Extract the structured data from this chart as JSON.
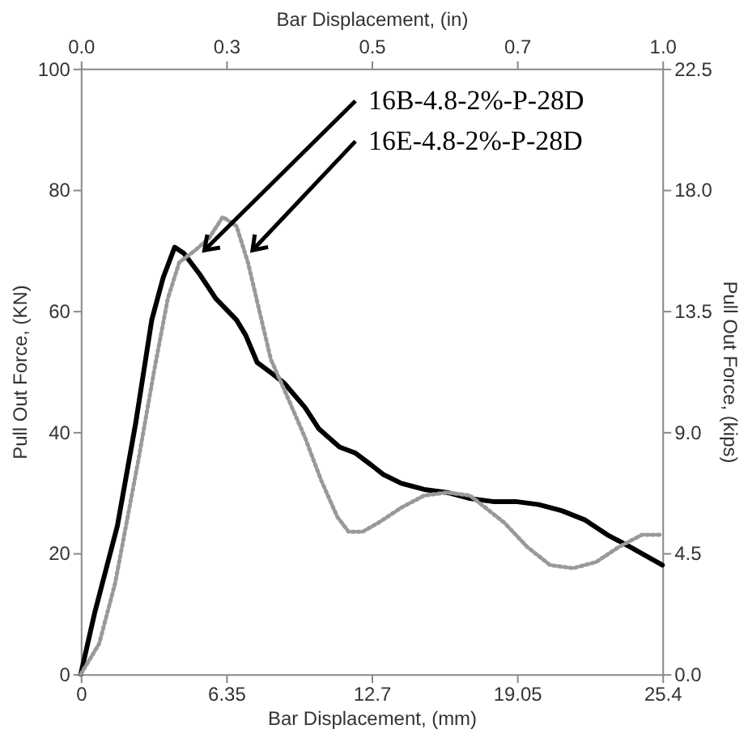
{
  "chart_data": {
    "type": "line",
    "xlabel": "Bar Displacement, (mm)",
    "ylabel": "Pull Out Force, (KN)",
    "y2label": "Pull Out Force, (kips)",
    "x2label": "Bar Displacement, (in)",
    "xlim": [
      0,
      25.4
    ],
    "xticks": [
      0,
      6.35,
      12.7,
      19.05,
      25.4
    ],
    "ylim": [
      0,
      100
    ],
    "yticks": [
      0,
      20,
      40,
      60,
      80,
      100
    ],
    "y2lim": [
      0,
      22.5
    ],
    "y2ticks": [
      {
        "value": 0,
        "label": "0.0"
      },
      4.5,
      {
        "value": 9,
        "label": "9.0"
      },
      13.5,
      {
        "value": 18,
        "label": "18.0"
      },
      22.5
    ],
    "x2lim": [
      0,
      1
    ],
    "x2ticks": [
      {
        "value": 0,
        "label": "0.0"
      },
      {
        "value": 0.25,
        "label": "0.3"
      },
      0.5,
      {
        "value": 0.75,
        "label": "0.7"
      },
      {
        "value": 1,
        "label": "1.0"
      }
    ],
    "grid": false,
    "marker": "none",
    "series": [
      {
        "color": "#000000",
        "line_style": "solid",
        "x": [
          0,
          0.6,
          1.6,
          2.4,
          3.1,
          3.6,
          4.1,
          4.5,
          5.2,
          5.9,
          6.8,
          7.2,
          7.7,
          8.4,
          8.9,
          9.8,
          10.4,
          11.3,
          12.0,
          12.7,
          13.2,
          14,
          15,
          16,
          17,
          18,
          19,
          20,
          21,
          22,
          23,
          24,
          25.4
        ],
        "values": [
          0,
          10,
          24.5,
          41.5,
          58.5,
          65.5,
          70.5,
          69.5,
          66,
          62,
          58.5,
          56,
          51.5,
          49.5,
          48,
          44,
          40.5,
          37.5,
          36.5,
          34.5,
          33,
          31.5,
          30.5,
          30,
          29,
          28.5,
          28.5,
          28,
          27,
          25.5,
          23,
          21,
          18
        ]
      },
      {
        "color": "#999999",
        "line_style": "dotted",
        "x": [
          0,
          0.8,
          1.5,
          2.5,
          3.2,
          3.8,
          4.3,
          5,
          5.6,
          6.2,
          6.8,
          7.3,
          7.8,
          8.3,
          9,
          9.8,
          10.5,
          11.2,
          11.7,
          12.3,
          13,
          14,
          15,
          16,
          17,
          17.5,
          18.5,
          19.5,
          20.5,
          21.5,
          22.5,
          23.5,
          24.5,
          25.4
        ],
        "values": [
          0,
          5,
          15,
          35,
          50,
          62,
          68,
          70,
          72,
          75.5,
          74,
          68,
          60,
          52,
          46,
          39,
          32,
          26,
          23.5,
          23.5,
          25,
          27.5,
          29.5,
          30,
          29.5,
          28,
          25,
          21,
          18,
          17.5,
          18.5,
          21,
          23,
          23
        ]
      }
    ],
    "annotations": [
      {
        "text": "16B-4.8-2%-P-28D",
        "x": 5.4,
        "y": 70
      },
      {
        "text": "16E-4.8-2%-P-28D",
        "x": 7.5,
        "y": 70
      }
    ]
  }
}
